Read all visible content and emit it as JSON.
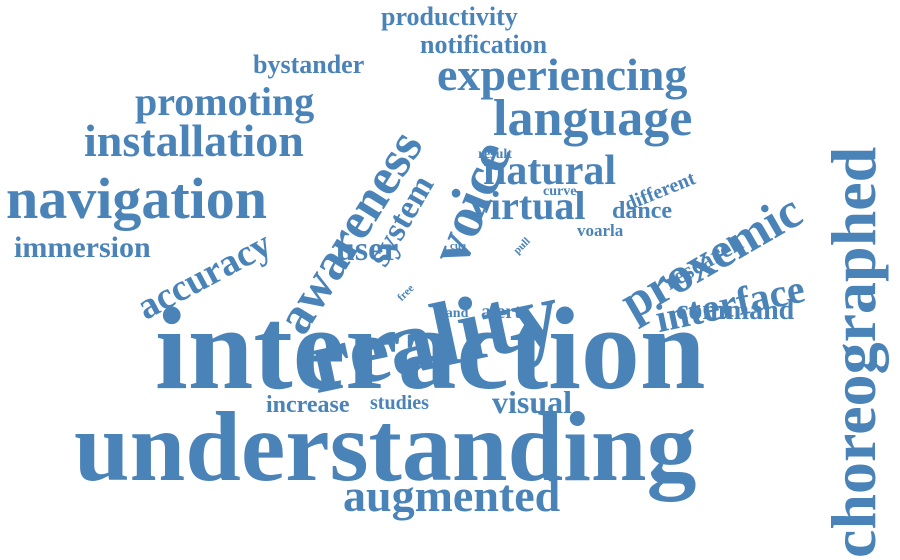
{
  "cloud": {
    "color": "#4a83b8",
    "words": [
      "productivity",
      "notification",
      "bystander",
      "experiencing",
      "promoting",
      "language",
      "installation",
      "awareness",
      "voice",
      "system",
      "result",
      "natural",
      "different",
      "choreographed",
      "navigation",
      "curve",
      "virtual",
      "dance",
      "proxemic",
      "voarla",
      "immersion",
      "accuracy",
      "user",
      "cue",
      "pull",
      "research",
      "reality",
      "interface",
      "free",
      "hand",
      "alert",
      "command",
      "interaction",
      "increase",
      "studies",
      "visual",
      "understanding",
      "augmented"
    ]
  }
}
